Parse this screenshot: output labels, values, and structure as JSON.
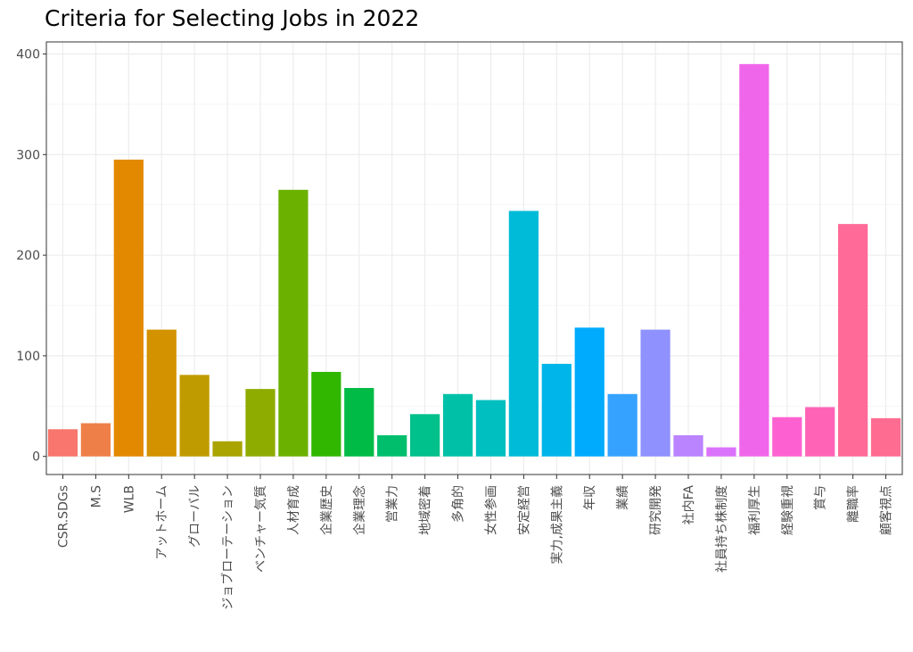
{
  "chart_data": {
    "type": "bar",
    "title": "Criteria for Selecting Jobs in 2022",
    "xlabel": "",
    "ylabel": "",
    "ylim": [
      -18,
      412
    ],
    "yticks": [
      0,
      100,
      200,
      300,
      400
    ],
    "grid": true,
    "legend": "none",
    "categories": [
      "CSR.SDGs",
      "M.S",
      "WLB",
      "アットホーム",
      "グローバル",
      "ジョブローテーション",
      "ベンチャー気質",
      "人材育成",
      "企業歴史",
      "企業理念",
      "営業力",
      "地域密着",
      "多角的",
      "女性参画",
      "安定経営",
      "実力,成果主義",
      "年収",
      "業績",
      "研究開発",
      "社内FA",
      "社員持ち株制度",
      "福利厚生",
      "経験重視",
      "賞与",
      "離職率",
      "顧客視点"
    ],
    "values": [
      27,
      33,
      295,
      126,
      81,
      15,
      67,
      265,
      84,
      68,
      21,
      42,
      62,
      56,
      244,
      92,
      128,
      62,
      126,
      21,
      9,
      390,
      39,
      49,
      231,
      38
    ],
    "colors": [
      "#F8766D",
      "#EF7F49",
      "#E38900",
      "#D39200",
      "#C09B00",
      "#A9A400",
      "#8EAB00",
      "#6BB100",
      "#31B700",
      "#00BB45",
      "#00BE6C",
      "#00C08B",
      "#00C1A7",
      "#00BFC0",
      "#00BBD7",
      "#00B5EA",
      "#00ABFD",
      "#35A2FF",
      "#8F91FF",
      "#BA83FF",
      "#DB72FB",
      "#F066EA",
      "#FD61D1",
      "#FF63B6",
      "#FF6A98",
      "#FF6C91"
    ]
  }
}
